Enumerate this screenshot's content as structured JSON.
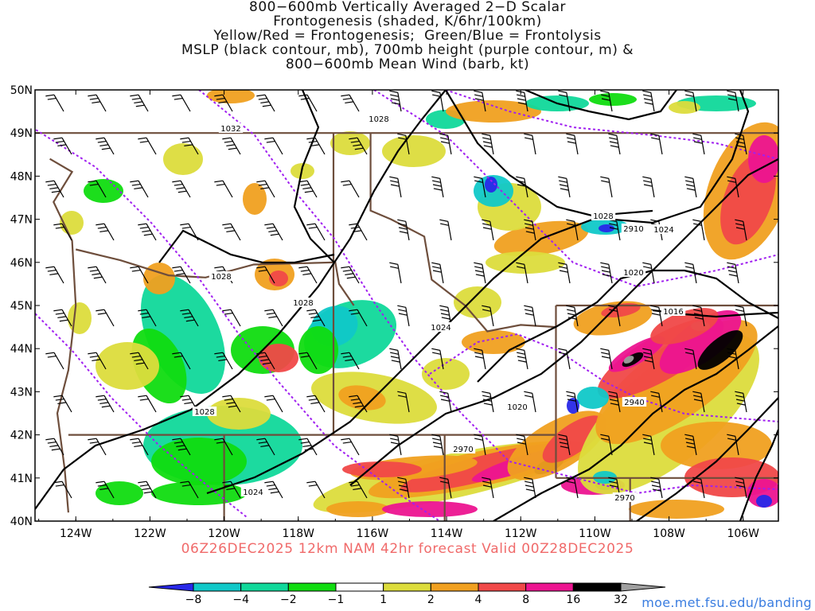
{
  "title": {
    "lines": [
      "800−600mb Vertically Averaged 2−D Scalar",
      "Frontogenesis (shaded, K/6hr/100km)",
      "Yellow/Red = Frontogenesis;  Green/Blue = Frontolysis",
      "MSLP (black contour, mb), 700mb height (purple contour, m) &",
      "800−600mb Mean Wind (barb, kt)"
    ]
  },
  "subtitle": "06Z26DEC2025 12km NAM 42hr forecast Valid 00Z28DEC2025",
  "credit": "moe.met.fsu.edu/banding",
  "map": {
    "lat_labels": [
      "50N",
      "49N",
      "48N",
      "47N",
      "46N",
      "45N",
      "44N",
      "43N",
      "42N",
      "41N",
      "40N"
    ],
    "lon_labels": [
      "124W",
      "122W",
      "120W",
      "118W",
      "116W",
      "114W",
      "112W",
      "110W",
      "108W",
      "106W"
    ],
    "mslp_labels": [
      "1032",
      "1028",
      "1028",
      "1028",
      "1028",
      "1024",
      "1024",
      "1020",
      "1020",
      "1016",
      "1024",
      "1028"
    ],
    "height_labels": [
      "2910",
      "2940",
      "2970",
      "2970"
    ]
  },
  "legend": {
    "tick_labels": [
      "−8",
      "−4",
      "−2",
      "−1",
      "1",
      "2",
      "4",
      "8",
      "16",
      "32"
    ],
    "colors": [
      "#2828e8",
      "#10c8c8",
      "#10d89a",
      "#10dc10",
      "#ffffff",
      "#dcdc3c",
      "#f0a020",
      "#f04848",
      "#ec1490",
      "#000000",
      "#a0a0a0"
    ]
  },
  "colors": {
    "state_borders": "#6e4e3c",
    "mslp": "#000000",
    "height": "#a020f0",
    "subtitle": "#f06a6a",
    "credit": "#3a7de0"
  }
}
